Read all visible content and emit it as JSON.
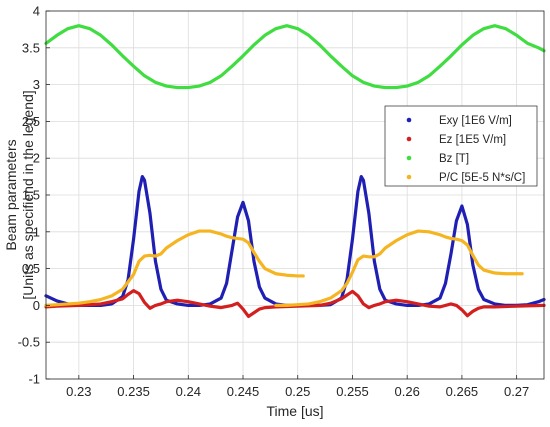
{
  "chart_data": {
    "type": "line",
    "xlabel": "Time [us]",
    "ylabel": [
      "Beam parameters",
      "[Units as specifiend in the legend]"
    ],
    "xlim": [
      0.227,
      0.2725
    ],
    "ylim": [
      -1,
      4
    ],
    "xticks": [
      0.23,
      0.235,
      0.24,
      0.245,
      0.25,
      0.255,
      0.26,
      0.265,
      0.27
    ],
    "xtick_labels": [
      "0.23",
      "0.235",
      "0.24",
      "0.245",
      "0.25",
      "0.255",
      "0.26",
      "0.265",
      "0.27"
    ],
    "yticks": [
      -1,
      -0.5,
      0,
      0.5,
      1,
      1.5,
      2,
      2.5,
      3,
      3.5,
      4
    ],
    "ytick_labels": [
      "-1",
      "-0.5",
      "0",
      "0.5",
      "1",
      "1.5",
      "2",
      "2.5",
      "3",
      "3.5",
      "4"
    ],
    "grid": true,
    "legend_position": "right",
    "series": [
      {
        "name": "Exy [1E6 V/m]",
        "color": "#1f1fb4",
        "x": [
          0.227,
          0.228,
          0.229,
          0.23,
          0.231,
          0.232,
          0.233,
          0.234,
          0.2345,
          0.235,
          0.2355,
          0.2358,
          0.236,
          0.2365,
          0.237,
          0.2375,
          0.238,
          0.239,
          0.24,
          0.241,
          0.242,
          0.243,
          0.2435,
          0.244,
          0.2445,
          0.245,
          0.2455,
          0.246,
          0.2465,
          0.247,
          0.248,
          0.249,
          0.25,
          0.251,
          0.252,
          0.253,
          0.254,
          0.2545,
          0.255,
          0.2555,
          0.2558,
          0.256,
          0.2565,
          0.257,
          0.2575,
          0.258,
          0.259,
          0.26,
          0.261,
          0.262,
          0.263,
          0.2635,
          0.264,
          0.2645,
          0.265,
          0.2655,
          0.266,
          0.2665,
          0.267,
          0.268,
          0.269,
          0.27,
          0.271,
          0.272,
          0.2725
        ],
        "y": [
          0.13,
          0.06,
          0.02,
          0.0,
          0.0,
          0.0,
          0.02,
          0.12,
          0.35,
          0.9,
          1.55,
          1.75,
          1.7,
          1.25,
          0.6,
          0.22,
          0.07,
          0.02,
          0.0,
          0.0,
          0.02,
          0.1,
          0.3,
          0.75,
          1.2,
          1.4,
          1.15,
          0.6,
          0.25,
          0.1,
          0.02,
          0.0,
          0.0,
          0.0,
          0.0,
          0.01,
          0.1,
          0.35,
          0.9,
          1.55,
          1.75,
          1.7,
          1.25,
          0.6,
          0.22,
          0.07,
          0.02,
          0.0,
          0.0,
          0.02,
          0.1,
          0.3,
          0.7,
          1.15,
          1.35,
          1.1,
          0.55,
          0.22,
          0.08,
          0.02,
          0.0,
          0.0,
          0.01,
          0.05,
          0.08
        ]
      },
      {
        "name": "Ez [1E5 V/m]",
        "color": "#d41f1f",
        "x": [
          0.227,
          0.228,
          0.23,
          0.232,
          0.233,
          0.234,
          0.2345,
          0.235,
          0.2355,
          0.236,
          0.2365,
          0.237,
          0.2375,
          0.238,
          0.239,
          0.24,
          0.241,
          0.242,
          0.243,
          0.244,
          0.2445,
          0.245,
          0.2455,
          0.246,
          0.2465,
          0.247,
          0.248,
          0.25,
          0.252,
          0.253,
          0.254,
          0.2545,
          0.255,
          0.2555,
          0.256,
          0.2565,
          0.257,
          0.2575,
          0.258,
          0.259,
          0.26,
          0.261,
          0.262,
          0.263,
          0.264,
          0.2645,
          0.265,
          0.2655,
          0.266,
          0.2665,
          0.267,
          0.268,
          0.27,
          0.2725
        ],
        "y": [
          -0.02,
          -0.01,
          0.0,
          0.02,
          0.05,
          0.09,
          0.15,
          0.2,
          0.16,
          0.04,
          -0.04,
          0.0,
          0.02,
          0.05,
          0.07,
          0.05,
          0.02,
          -0.01,
          -0.03,
          0.0,
          0.03,
          -0.05,
          -0.15,
          -0.1,
          -0.05,
          -0.03,
          -0.02,
          -0.01,
          0.0,
          0.03,
          0.09,
          0.14,
          0.19,
          0.13,
          0.02,
          -0.03,
          0.0,
          0.02,
          0.05,
          0.07,
          0.05,
          0.02,
          -0.01,
          -0.02,
          0.02,
          0.0,
          -0.06,
          -0.14,
          -0.08,
          -0.04,
          -0.02,
          -0.02,
          -0.01,
          0.0
        ]
      },
      {
        "name": "Bz [T]",
        "color": "#3fdd3f",
        "x": [
          0.227,
          0.228,
          0.229,
          0.23,
          0.231,
          0.232,
          0.233,
          0.234,
          0.235,
          0.236,
          0.237,
          0.238,
          0.239,
          0.24,
          0.241,
          0.242,
          0.243,
          0.244,
          0.245,
          0.246,
          0.247,
          0.248,
          0.249,
          0.25,
          0.251,
          0.252,
          0.253,
          0.254,
          0.255,
          0.256,
          0.257,
          0.258,
          0.259,
          0.26,
          0.261,
          0.262,
          0.263,
          0.264,
          0.265,
          0.266,
          0.267,
          0.268,
          0.269,
          0.27,
          0.271,
          0.272,
          0.2725
        ],
        "y": [
          3.56,
          3.67,
          3.76,
          3.8,
          3.76,
          3.67,
          3.54,
          3.39,
          3.25,
          3.12,
          3.03,
          2.98,
          2.96,
          2.96,
          2.98,
          3.03,
          3.12,
          3.25,
          3.39,
          3.54,
          3.67,
          3.76,
          3.8,
          3.76,
          3.67,
          3.54,
          3.39,
          3.25,
          3.12,
          3.03,
          2.98,
          2.96,
          2.96,
          2.98,
          3.03,
          3.12,
          3.25,
          3.39,
          3.54,
          3.67,
          3.76,
          3.8,
          3.76,
          3.67,
          3.56,
          3.5,
          3.46
        ]
      },
      {
        "name": "P/C [5E-5 N*s/C]",
        "color": "#f5b521",
        "x": [
          0.227,
          0.228,
          0.229,
          0.23,
          0.231,
          0.232,
          0.233,
          0.234,
          0.235,
          0.2355,
          0.236,
          0.2365,
          0.237,
          0.2375,
          0.238,
          0.239,
          0.24,
          0.241,
          0.242,
          0.243,
          0.2435,
          0.244,
          0.2445,
          0.245,
          0.2455,
          0.246,
          0.2465,
          0.247,
          0.248,
          0.249,
          0.25,
          0.2505,
          0.2475,
          0.248,
          0.249,
          0.25,
          0.251,
          0.252,
          0.253,
          0.254,
          0.2545,
          0.255,
          0.2555,
          0.256,
          0.2565,
          0.257,
          0.2575,
          0.258,
          0.259,
          0.26,
          0.261,
          0.262,
          0.263,
          0.2635,
          0.264,
          0.2645,
          0.265,
          0.2655,
          0.266,
          0.2665,
          0.267,
          0.268,
          0.269,
          0.27,
          0.2705
        ],
        "y": [
          0.0,
          0.01,
          0.02,
          0.03,
          0.05,
          0.08,
          0.13,
          0.22,
          0.42,
          0.6,
          0.67,
          0.68,
          0.67,
          0.7,
          0.78,
          0.88,
          0.96,
          1.01,
          1.01,
          0.97,
          0.94,
          0.92,
          0.91,
          0.9,
          0.85,
          0.72,
          0.6,
          0.5,
          0.43,
          0.41,
          0.4,
          0.4,
          null,
          0.0,
          0.0,
          0.01,
          0.02,
          0.05,
          0.1,
          0.2,
          0.3,
          0.45,
          0.62,
          0.67,
          0.66,
          0.66,
          0.7,
          0.78,
          0.88,
          0.96,
          1.01,
          1.0,
          0.96,
          0.93,
          0.91,
          0.9,
          0.88,
          0.82,
          0.68,
          0.55,
          0.48,
          0.44,
          0.43,
          0.43,
          0.43
        ]
      }
    ]
  }
}
